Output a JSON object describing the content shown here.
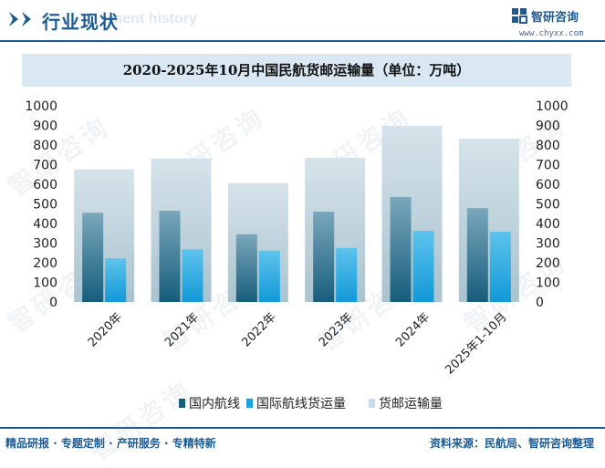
{
  "header": {
    "title": "行业现状",
    "ghost_text": "ment history",
    "logo_name": "智研咨询",
    "logo_url": "www.chyxx.com"
  },
  "watermark": "智研咨询",
  "footer": {
    "left": "精品研报 · 专题定制 · 产研服务 · 专精特新",
    "right": "资料来源：民航局、智研咨询整理"
  },
  "colors": {
    "brand": "#1c5c93",
    "domestic": "#1a5f7a",
    "international": "#1aa3dc",
    "total": "#b8cfd9"
  },
  "chart_data": {
    "type": "bar",
    "title": "2020-2025年10月中国民航货邮运输量（单位：万吨）",
    "categories": [
      "2020年",
      "2021年",
      "2022年",
      "2023年",
      "2024年",
      "2025年1-10月"
    ],
    "series": [
      {
        "name": "国内航线",
        "values": [
          455,
          465,
          345,
          460,
          535,
          478
        ]
      },
      {
        "name": "国际航线货运量",
        "values": [
          222,
          268,
          262,
          275,
          363,
          358
        ]
      },
      {
        "name": "货邮运输量",
        "values": [
          677,
          732,
          607,
          735,
          898,
          833
        ]
      }
    ],
    "ylim": [
      0,
      1000
    ],
    "yticks": [
      "0",
      "100",
      "200",
      "300",
      "400",
      "500",
      "600",
      "700",
      "800",
      "900",
      "1000"
    ],
    "legend_position": "bottom"
  }
}
